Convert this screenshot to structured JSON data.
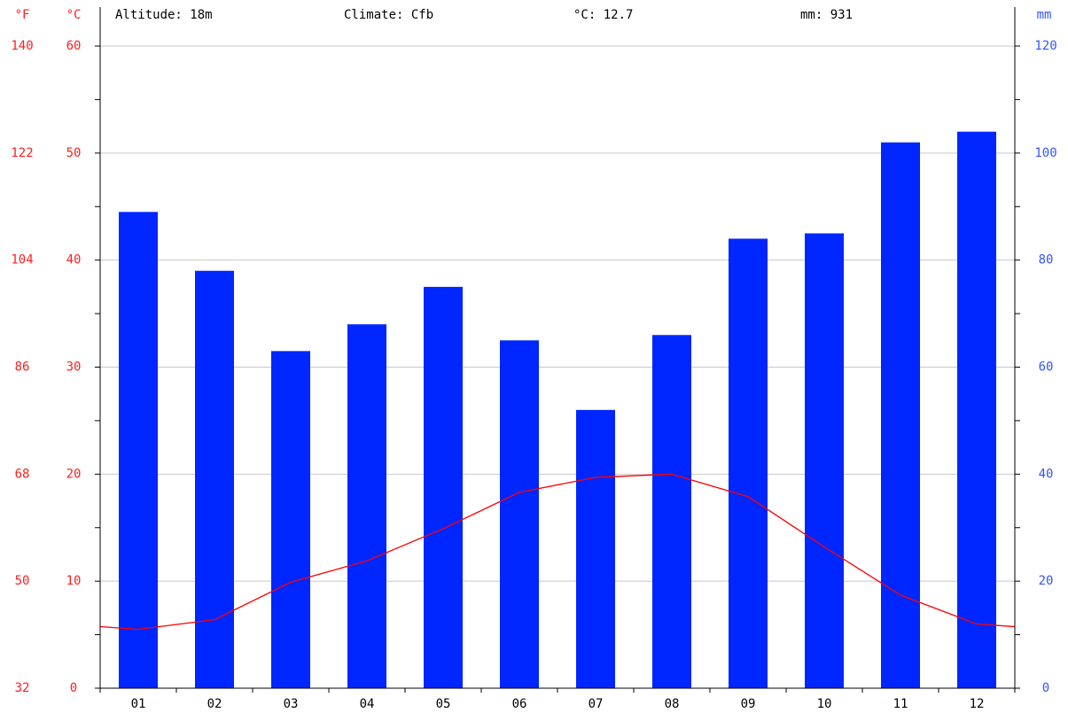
{
  "chart_data": {
    "type": "climate",
    "annotations": [
      "Altitude: 18m",
      "Climate: Cfb",
      "°C: 12.7",
      "mm: 931"
    ],
    "y3label": "°F",
    "ylabel": "°C",
    "y2label": "mm",
    "categories": [
      "01",
      "02",
      "03",
      "04",
      "05",
      "06",
      "07",
      "08",
      "09",
      "10",
      "11",
      "12"
    ],
    "series": [
      {
        "type": "bar",
        "color": "#0026ff",
        "axis": "y2",
        "values": [
          89,
          78,
          63,
          68,
          75,
          65,
          52,
          66,
          84,
          85,
          102,
          104
        ]
      },
      {
        "type": "line",
        "color": "#ff0000",
        "axis": "y",
        "values": [
          5.5,
          6.4,
          9.9,
          11.9,
          14.9,
          18.3,
          19.7,
          20.0,
          17.9,
          13.2,
          8.7,
          6.0
        ]
      }
    ],
    "ylim": [
      0,
      60
    ],
    "yticks": [
      0,
      10,
      20,
      30,
      40,
      50,
      60
    ],
    "y2lim": [
      0,
      120
    ],
    "y2ticks": [
      0,
      20,
      40,
      60,
      80,
      100,
      120
    ],
    "y3lim": [
      32,
      140
    ],
    "y3ticks": [
      32,
      50,
      68,
      86,
      104,
      122,
      140
    ],
    "grid": true
  }
}
